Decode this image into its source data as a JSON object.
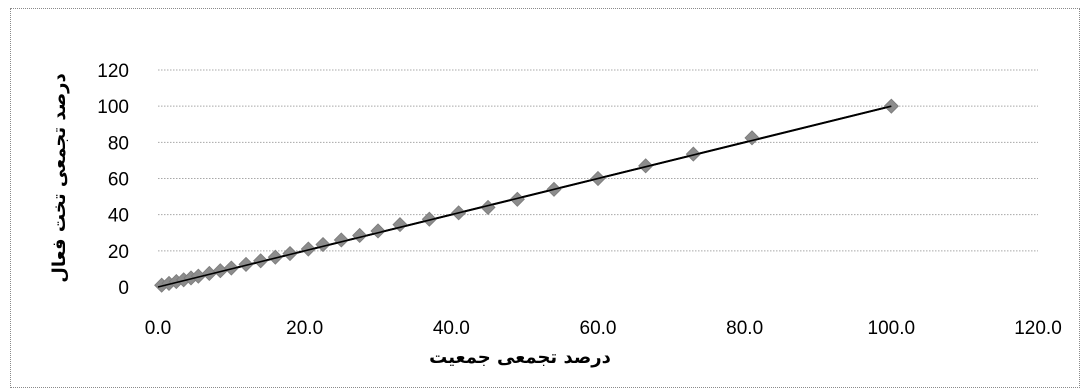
{
  "chart_data": {
    "type": "scatter",
    "title": "",
    "xlabel": "درصد تجمعی جمعیت",
    "ylabel": "درصد تجمعی تخت فعال",
    "xlim": [
      0,
      120
    ],
    "ylim": [
      0,
      120
    ],
    "x_ticks": [
      "0.0",
      "20.0",
      "40.0",
      "60.0",
      "80.0",
      "100.0",
      "120.0"
    ],
    "y_ticks": [
      "0",
      "20",
      "40",
      "60",
      "80",
      "100",
      "120"
    ],
    "grid": "horizontal",
    "legend": "none",
    "series": [
      {
        "marker": "diamond",
        "color": "#8c8c8c",
        "points": [
          [
            0.5,
            1
          ],
          [
            1.5,
            2
          ],
          [
            2.5,
            3
          ],
          [
            3.5,
            4
          ],
          [
            4.5,
            5
          ],
          [
            5.5,
            6
          ],
          [
            7,
            7.5
          ],
          [
            8.5,
            9
          ],
          [
            10,
            10.5
          ],
          [
            12,
            12.5
          ],
          [
            14,
            14.5
          ],
          [
            16,
            16.5
          ],
          [
            18,
            18.5
          ],
          [
            20.5,
            21
          ],
          [
            22.5,
            23.5
          ],
          [
            25,
            26
          ],
          [
            27.5,
            28.5
          ],
          [
            30,
            31
          ],
          [
            33,
            34.5
          ],
          [
            37,
            37.5
          ],
          [
            41,
            41
          ],
          [
            45,
            44
          ],
          [
            49,
            48.5
          ],
          [
            54,
            54
          ],
          [
            60,
            60
          ],
          [
            66.5,
            67
          ],
          [
            73,
            73.5
          ],
          [
            81,
            82.5
          ],
          [
            100,
            100
          ]
        ]
      }
    ],
    "trendline": {
      "from": [
        0,
        0
      ],
      "to": [
        100,
        100
      ],
      "color": "#000000"
    }
  },
  "colors": {
    "grid": "#a8a8a8",
    "marker": "#8c8c8c",
    "line": "#000000"
  }
}
